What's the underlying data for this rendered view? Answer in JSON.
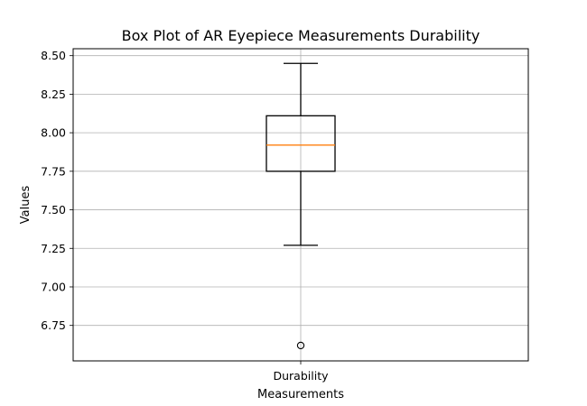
{
  "chart_data": {
    "type": "box",
    "title": "Box Plot of AR Eyepiece Measurements Durability",
    "xlabel": "Measurements",
    "ylabel": "Values",
    "categories": [
      "Durability"
    ],
    "ylim": [
      6.52,
      8.545
    ],
    "yticks": [
      6.75,
      7.0,
      7.25,
      7.5,
      7.75,
      8.0,
      8.25,
      8.5
    ],
    "ytick_labels": [
      "6.75",
      "7.00",
      "7.25",
      "7.50",
      "7.75",
      "8.00",
      "8.25",
      "8.50"
    ],
    "grid": true,
    "boxes": [
      {
        "name": "Durability",
        "whisker_low": 7.27,
        "q1": 7.75,
        "median": 7.92,
        "q3": 8.11,
        "whisker_high": 8.45,
        "outliers": [
          6.62
        ]
      }
    ],
    "colors": {
      "box": "#000000",
      "median": "#ff7f0e",
      "grid": "#b0b0b0",
      "outlier": "#000000"
    }
  }
}
